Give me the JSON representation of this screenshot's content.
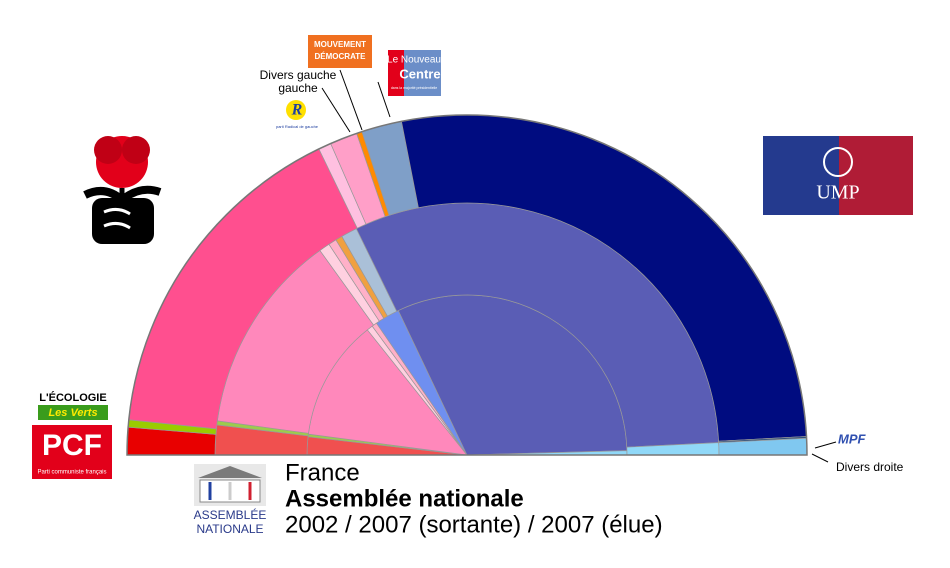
{
  "chart_data": {
    "type": "parliament",
    "title": "France",
    "subtitle": "Assemblée nationale",
    "caption": "2002 / 2007 (sortante) / 2007 (élue)",
    "rings": [
      {
        "values": [
          21,
          3,
          141,
          7,
          6,
          29,
          365,
          5
        ],
        "colors": [
          "#f0504f",
          "#9ccc4c",
          "#ff88bb",
          "#ffd0e0",
          "#ffb0c8",
          "#6f8ff0",
          "#5a5db5",
          "#90d8f8"
        ]
      },
      {
        "values": [
          22,
          3,
          149,
          8,
          6,
          5,
          12,
          363,
          9
        ],
        "colors": [
          "#f0504f",
          "#9ccc4c",
          "#ff88bb",
          "#ffd0e0",
          "#ffb0c8",
          "#f0a040",
          "#aac0d8",
          "#5a5db5",
          "#90d8f8"
        ]
      },
      {
        "values": [
          15,
          4,
          186,
          7,
          15,
          3,
          22,
          313,
          1,
          9
        ],
        "colors": [
          "#e80000",
          "#99cc00",
          "#ff4f8f",
          "#ffc0e0",
          "#ff9fc8",
          "#ff8a00",
          "#7f9fc8",
          "#000c80",
          "#30507a",
          "#80c8f0"
        ]
      }
    ],
    "annotations": [
      "Divers gauche",
      "Divers droite"
    ],
    "logos": {
      "ump": "UMP",
      "pcf": "PCF",
      "pcf_sub": "Parti communiste français",
      "verts_top": "L'ÉCOLOGIE",
      "verts_bottom": "Les Verts",
      "modem_top": "MOUVEMENT",
      "modem_bottom": "DÉMOCRATE",
      "nc_top": "Le Nouveau",
      "nc_bottom": "Centre",
      "nc_sub": "dans la majorité présidentielle",
      "prg": "parti Radical de gauche",
      "mpf": "MPF",
      "an_top": "ASSEMBLÉE",
      "an_bottom": "NATIONALE"
    }
  }
}
